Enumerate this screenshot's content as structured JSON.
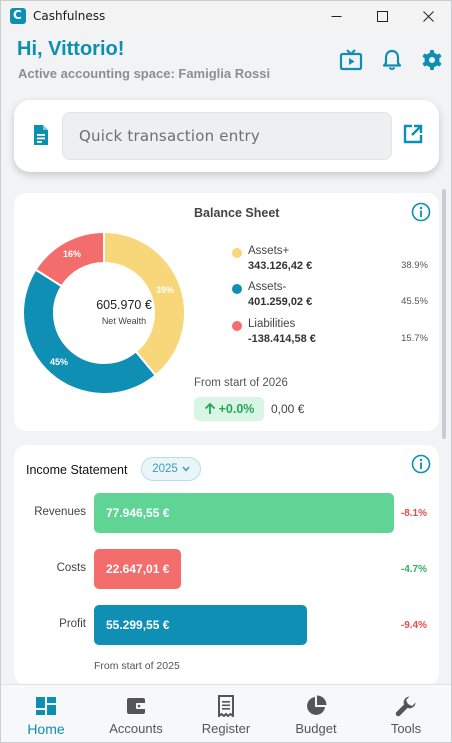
{
  "window": {
    "title": "Cashfulness"
  },
  "header": {
    "greeting": "Hi, Vittorio!",
    "subtitle": "Active accounting space: Famiglia Rossi",
    "icons": [
      "tv-icon",
      "bell-icon",
      "gear-icon"
    ]
  },
  "quick_entry": {
    "placeholder": "Quick transaction entry"
  },
  "balance_sheet": {
    "title": "Balance Sheet",
    "net_wealth_amount": "605.970 €",
    "net_wealth_label": "Net Wealth",
    "segments": [
      {
        "name": "Assets+",
        "value": "343.126,42 €",
        "pct": "38.9%",
        "share": 39,
        "label": "39%",
        "color": "#f8d77a"
      },
      {
        "name": "Assets-",
        "value": "401.259,02 €",
        "pct": "45.5%",
        "share": 45,
        "label": "45%",
        "color": "#0f8fb4"
      },
      {
        "name": "Liabilities",
        "value": "-138.414,58 €",
        "pct": "15.7%",
        "share": 16,
        "label": "16%",
        "color": "#f46d6d"
      }
    ],
    "from_start_label": "From start of 2026",
    "delta": "+0.0%",
    "delta_amount": "0,00 €"
  },
  "income_statement": {
    "title": "Income Statement",
    "year": "2025",
    "rows": [
      {
        "label": "Revenues",
        "value": "77.946,55 €",
        "amount": 77946.55,
        "delta": "-8.1%",
        "color": "#5fd495",
        "delta_color": "#e84a4a"
      },
      {
        "label": "Costs",
        "value": "22.647,01 €",
        "amount": 22647.01,
        "delta": "-4.7%",
        "color": "#f46d6d",
        "delta_color": "#2fb067"
      },
      {
        "label": "Profit",
        "value": "55.299,55 €",
        "amount": 55299.55,
        "delta": "-9.4%",
        "color": "#0f8fb4",
        "delta_color": "#e84a4a"
      }
    ],
    "from_start_label": "From start of 2025"
  },
  "nav": [
    {
      "label": "Home",
      "icon": "dashboard-icon",
      "active": true
    },
    {
      "label": "Accounts",
      "icon": "wallet-icon",
      "active": false
    },
    {
      "label": "Register",
      "icon": "receipt-icon",
      "active": false
    },
    {
      "label": "Budget",
      "icon": "pie-chart-icon",
      "active": false
    },
    {
      "label": "Tools",
      "icon": "wrench-icon",
      "active": false
    }
  ],
  "colors": {
    "accent": "#0d8fb2",
    "positive": "#27a55a",
    "negative": "#e84a4a"
  }
}
